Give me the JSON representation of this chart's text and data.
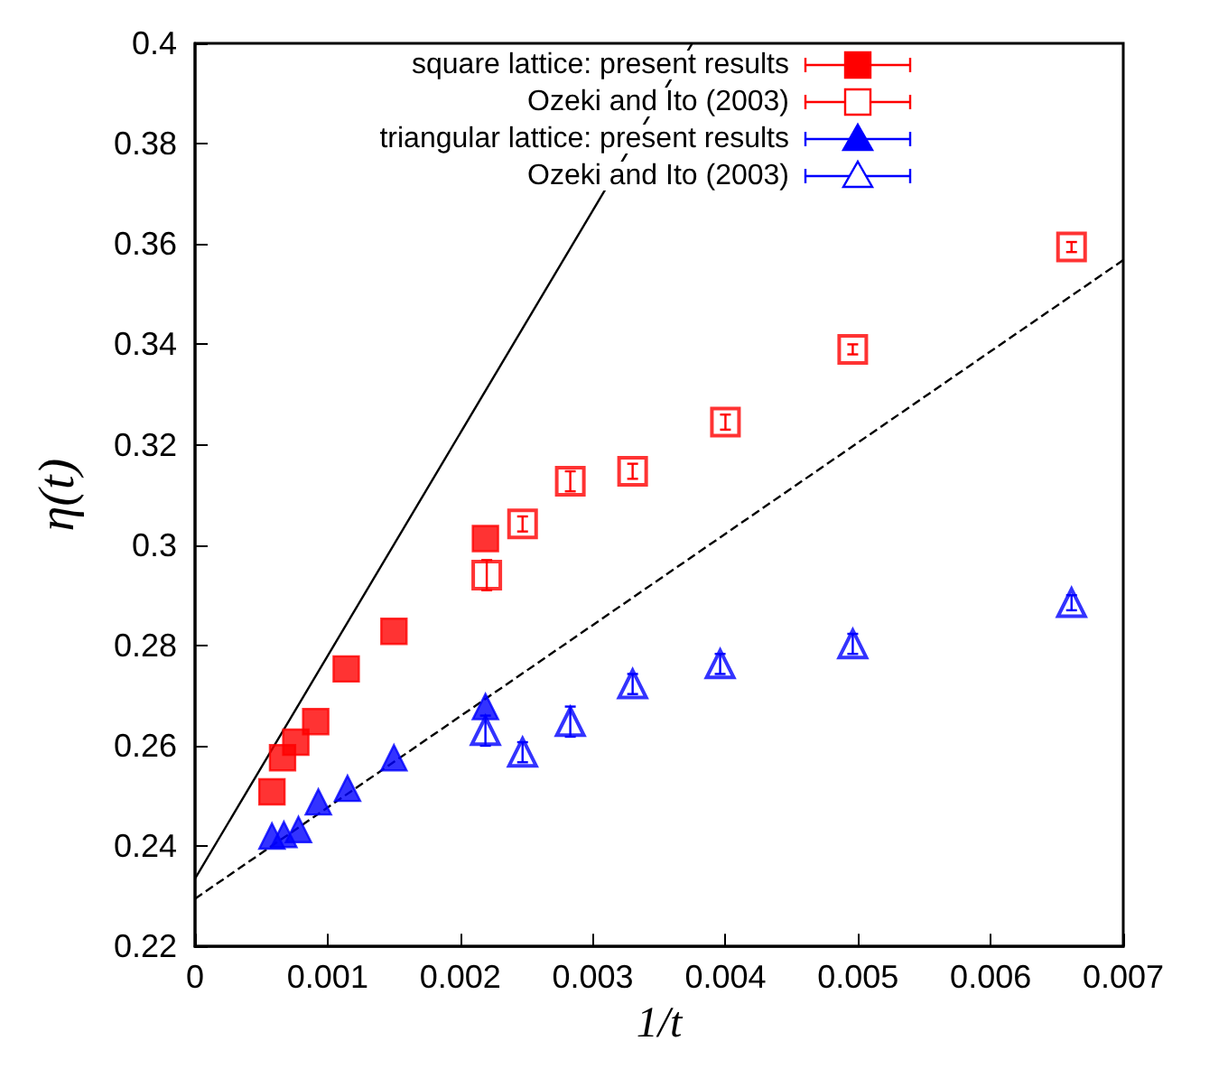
{
  "chart_data": {
    "type": "scatter",
    "xlabel": "1/t",
    "ylabel": "η(t)",
    "xlim": [
      0,
      0.007
    ],
    "xticks": [
      0,
      0.001,
      0.002,
      0.003,
      0.004,
      0.005,
      0.006,
      0.007
    ],
    "ylim": [
      0.22,
      0.4
    ],
    "yticks": [
      0.22,
      0.24,
      0.26,
      0.28,
      0.3,
      0.32,
      0.34,
      0.36,
      0.38,
      0.4
    ],
    "grid": false,
    "legend": "top left",
    "series": [
      {
        "name": "square lattice: present results",
        "color": "#ff0000",
        "marker": "square",
        "x": [
          0.00058,
          0.00066,
          0.00076,
          0.00091,
          0.00114,
          0.0015,
          0.00219
        ],
        "values": [
          0.2508,
          0.2576,
          0.2607,
          0.2648,
          0.2753,
          0.2828,
          0.3013
        ]
      },
      {
        "name": "Ozeki and Ito (2003)",
        "color": "#ff0000",
        "marker": "square",
        "x": [
          0.0022,
          0.00247,
          0.00283,
          0.0033,
          0.004,
          0.00496,
          0.00661
        ],
        "values": [
          0.294,
          0.3042,
          0.3127,
          0.3147,
          0.3245,
          0.339,
          0.3594
        ],
        "errors": [
          0.003,
          0.0015,
          0.002,
          0.0015,
          0.0015,
          0.001,
          0.001
        ]
      },
      {
        "name": "triangular lattice: present results",
        "color": "#0000ff",
        "marker": "triangle",
        "x": [
          0.00058,
          0.00067,
          0.00078,
          0.00093,
          0.00115,
          0.0015,
          0.00219
        ],
        "values": [
          0.242,
          0.2423,
          0.2433,
          0.2488,
          0.2515,
          0.2576,
          0.2678
        ]
      },
      {
        "name": "Ozeki and Ito (2003)",
        "color": "#0000ff",
        "marker": "triangle",
        "x": [
          0.00219,
          0.00247,
          0.00283,
          0.0033,
          0.00396,
          0.00496,
          0.00661
        ],
        "values": [
          0.263,
          0.2587,
          0.2648,
          0.2723,
          0.2763,
          0.2803,
          0.2885
        ],
        "errors": [
          0.003,
          0.002,
          0.003,
          0.002,
          0.002,
          0.002,
          0.0015
        ]
      },
      {
        "type": "line",
        "color": "#000000",
        "line_style": "solid",
        "x": [
          0,
          0.00375
        ],
        "values": [
          0.2335,
          0.4
        ]
      },
      {
        "type": "line",
        "color": "#000000",
        "line_style": "dashed",
        "x": [
          0,
          0.007
        ],
        "values": [
          0.2295,
          0.3568
        ]
      }
    ]
  }
}
